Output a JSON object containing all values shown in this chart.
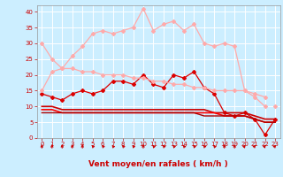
{
  "x": [
    0,
    1,
    2,
    3,
    4,
    5,
    6,
    7,
    8,
    9,
    10,
    11,
    12,
    13,
    14,
    15,
    16,
    17,
    18,
    19,
    20,
    21,
    22,
    23
  ],
  "lines": [
    {
      "color": "#ffaaaa",
      "linewidth": 0.9,
      "marker": "D",
      "markersize": 2.0,
      "values": [
        30,
        25,
        22,
        26,
        29,
        33,
        34,
        33,
        34,
        35,
        41,
        34,
        36,
        37,
        34,
        36,
        30,
        29,
        30,
        29,
        15,
        13,
        10,
        null
      ]
    },
    {
      "color": "#ffaaaa",
      "linewidth": 0.9,
      "marker": "D",
      "markersize": 2.0,
      "values": [
        null,
        null,
        null,
        null,
        null,
        null,
        null,
        null,
        null,
        null,
        null,
        null,
        null,
        null,
        null,
        null,
        null,
        null,
        null,
        null,
        null,
        null,
        null,
        10
      ]
    },
    {
      "color": "#dd0000",
      "linewidth": 0.9,
      "marker": "D",
      "markersize": 2.0,
      "values": [
        14,
        13,
        12,
        14,
        15,
        14,
        15,
        18,
        18,
        17,
        20,
        17,
        16,
        20,
        19,
        21,
        16,
        14,
        8,
        7,
        8,
        6,
        1,
        6
      ]
    },
    {
      "color": "#ffaaaa",
      "linewidth": 0.9,
      "marker": "D",
      "markersize": 2.0,
      "values": [
        15,
        21,
        22,
        22,
        21,
        21,
        20,
        20,
        20,
        19,
        19,
        18,
        18,
        17,
        17,
        16,
        16,
        15,
        15,
        15,
        15,
        14,
        13,
        null
      ]
    },
    {
      "color": "#cc0000",
      "linewidth": 1.2,
      "marker": null,
      "markersize": 0,
      "values": [
        10,
        10,
        9,
        9,
        9,
        9,
        9,
        9,
        9,
        9,
        9,
        9,
        9,
        9,
        9,
        9,
        9,
        8,
        8,
        8,
        8,
        7,
        6,
        6
      ]
    },
    {
      "color": "#ff0000",
      "linewidth": 1.2,
      "marker": null,
      "markersize": 0,
      "values": [
        9,
        9,
        8,
        8,
        8,
        8,
        8,
        8,
        8,
        8,
        8,
        8,
        8,
        8,
        8,
        8,
        8,
        8,
        7,
        7,
        7,
        6,
        5,
        5
      ]
    },
    {
      "color": "#aa0000",
      "linewidth": 1.0,
      "marker": null,
      "markersize": 0,
      "values": [
        8,
        8,
        8,
        8,
        8,
        8,
        8,
        8,
        8,
        8,
        8,
        8,
        8,
        8,
        8,
        8,
        7,
        7,
        7,
        7,
        7,
        6,
        5,
        5
      ]
    }
  ],
  "arrows_x": [
    0,
    1,
    2,
    3,
    4,
    5,
    6,
    7,
    8,
    9,
    10,
    11,
    12,
    13,
    14,
    15,
    16,
    17,
    18,
    19,
    20,
    21,
    22,
    23
  ],
  "arrows_deg": [
    0,
    0,
    0,
    0,
    0,
    -45,
    -45,
    -45,
    -45,
    -45,
    0,
    -45,
    -45,
    -45,
    -45,
    -45,
    -45,
    -45,
    0,
    0,
    45,
    45,
    45,
    45
  ],
  "xlabel": "Vent moyen/en rafales ( km/h )",
  "ylim": [
    0,
    42
  ],
  "yticks": [
    0,
    5,
    10,
    15,
    20,
    25,
    30,
    35,
    40
  ],
  "xticks": [
    0,
    1,
    2,
    3,
    4,
    5,
    6,
    7,
    8,
    9,
    10,
    11,
    12,
    13,
    14,
    15,
    16,
    17,
    18,
    19,
    20,
    21,
    22,
    23
  ],
  "bg_color": "#cceeff",
  "grid_color": "#ffffff",
  "text_color": "#cc0000",
  "arrow_color": "#cc0000",
  "label_fontsize": 6.5
}
